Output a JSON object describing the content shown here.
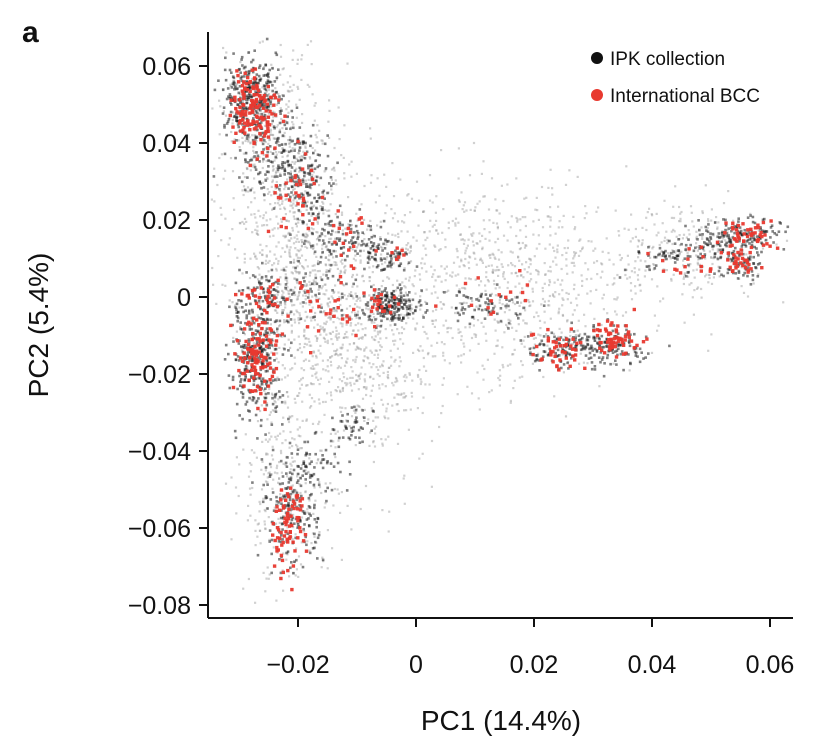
{
  "panel_label": "a",
  "chart_data": {
    "type": "scatter",
    "xlabel": "PC1 (14.4%)",
    "ylabel": "PC2 (5.4%)",
    "xlim": [
      -0.034,
      0.062
    ],
    "ylim": [
      -0.082,
      0.068
    ],
    "x_ticks": [
      {
        "value": -0.02,
        "label": "−0.02"
      },
      {
        "value": 0,
        "label": "0"
      },
      {
        "value": 0.02,
        "label": "0.02"
      },
      {
        "value": 0.04,
        "label": "0.04"
      },
      {
        "value": 0.06,
        "label": "0.06"
      }
    ],
    "y_ticks": [
      {
        "value": 0.06,
        "label": "0.06"
      },
      {
        "value": 0.04,
        "label": "0.04"
      },
      {
        "value": 0.02,
        "label": "0.02"
      },
      {
        "value": 0,
        "label": "0"
      },
      {
        "value": -0.02,
        "label": "−0.02"
      },
      {
        "value": -0.04,
        "label": "−0.04"
      },
      {
        "value": -0.06,
        "label": "−0.06"
      },
      {
        "value": -0.08,
        "label": "−0.08"
      }
    ],
    "grid": false,
    "legend_position": "top-right",
    "series": [
      {
        "name": "IPK collection",
        "color": "#1a1a1a",
        "clusters": [
          {
            "center": [
              -0.028,
              0.052
            ],
            "spread": [
              0.0022,
              0.005
            ],
            "weight": 300
          },
          {
            "center": [
              -0.024,
              0.036
            ],
            "spread": [
              0.0035,
              0.005
            ],
            "weight": 120
          },
          {
            "center": [
              -0.018,
              0.029
            ],
            "spread": [
              0.0025,
              0.006
            ],
            "weight": 140
          },
          {
            "center": [
              -0.012,
              0.016
            ],
            "spread": [
              0.003,
              0.003
            ],
            "weight": 80
          },
          {
            "center": [
              -0.007,
              0.011
            ],
            "spread": [
              0.002,
              0.002
            ],
            "weight": 40
          },
          {
            "center": [
              -0.003,
              0.01
            ],
            "spread": [
              0.0015,
              0.0015
            ],
            "weight": 30
          },
          {
            "center": [
              -0.004,
              -0.002
            ],
            "spread": [
              0.0022,
              0.0022
            ],
            "weight": 180
          },
          {
            "center": [
              -0.027,
              -0.015
            ],
            "spread": [
              0.0023,
              0.008
            ],
            "weight": 320
          },
          {
            "center": [
              -0.025,
              0.001
            ],
            "spread": [
              0.0025,
              0.003
            ],
            "weight": 70
          },
          {
            "center": [
              -0.016,
              0.0
            ],
            "spread": [
              0.0035,
              0.004
            ],
            "weight": 60
          },
          {
            "center": [
              -0.011,
              -0.033
            ],
            "spread": [
              0.0018,
              0.0025
            ],
            "weight": 40
          },
          {
            "center": [
              -0.021,
              -0.055
            ],
            "spread": [
              0.0025,
              0.007
            ],
            "weight": 170
          },
          {
            "center": [
              -0.017,
              -0.043
            ],
            "spread": [
              0.0025,
              0.004
            ],
            "weight": 60
          },
          {
            "center": [
              0.012,
              -0.003
            ],
            "spread": [
              0.004,
              0.0025
            ],
            "weight": 70
          },
          {
            "center": [
              0.024,
              -0.014
            ],
            "spread": [
              0.0025,
              0.0025
            ],
            "weight": 90
          },
          {
            "center": [
              0.033,
              -0.013
            ],
            "spread": [
              0.0035,
              0.0025
            ],
            "weight": 140
          },
          {
            "center": [
              0.045,
              0.011
            ],
            "spread": [
              0.004,
              0.0025
            ],
            "weight": 80
          },
          {
            "center": [
              0.055,
              0.016
            ],
            "spread": [
              0.0035,
              0.0022
            ],
            "weight": 150
          },
          {
            "center": [
              0.055,
              0.008
            ],
            "spread": [
              0.002,
              0.002
            ],
            "weight": 60
          }
        ]
      },
      {
        "name": "International BCC",
        "color": "#e8392f",
        "clusters": [
          {
            "center": [
              -0.0275,
              0.049
            ],
            "spread": [
              0.0018,
              0.005
            ],
            "weight": 140
          },
          {
            "center": [
              -0.02,
              0.028
            ],
            "spread": [
              0.0025,
              0.006
            ],
            "weight": 35
          },
          {
            "center": [
              -0.012,
              0.015
            ],
            "spread": [
              0.003,
              0.004
            ],
            "weight": 18
          },
          {
            "center": [
              -0.027,
              -0.016
            ],
            "spread": [
              0.0018,
              0.006
            ],
            "weight": 110
          },
          {
            "center": [
              -0.025,
              0.0
            ],
            "spread": [
              0.0022,
              0.003
            ],
            "weight": 30
          },
          {
            "center": [
              -0.006,
              -0.002
            ],
            "spread": [
              0.0015,
              0.002
            ],
            "weight": 20
          },
          {
            "center": [
              -0.015,
              -0.004
            ],
            "spread": [
              0.0035,
              0.004
            ],
            "weight": 25
          },
          {
            "center": [
              -0.022,
              -0.06
            ],
            "spread": [
              0.0015,
              0.006
            ],
            "weight": 75
          },
          {
            "center": [
              0.024,
              -0.014
            ],
            "spread": [
              0.0025,
              0.0025
            ],
            "weight": 45
          },
          {
            "center": [
              0.034,
              -0.011
            ],
            "spread": [
              0.002,
              0.0022
            ],
            "weight": 60
          },
          {
            "center": [
              0.056,
              0.016
            ],
            "spread": [
              0.0025,
              0.002
            ],
            "weight": 45
          },
          {
            "center": [
              0.055,
              0.009
            ],
            "spread": [
              0.0015,
              0.0018
            ],
            "weight": 30
          },
          {
            "center": [
              0.045,
              0.008
            ],
            "spread": [
              0.003,
              0.002
            ],
            "weight": 15
          },
          {
            "center": [
              0.014,
              0.0
            ],
            "spread": [
              0.004,
              0.003
            ],
            "weight": 15
          },
          {
            "center": [
              -0.003,
              0.011
            ],
            "spread": [
              0.001,
              0.001
            ],
            "weight": 6
          }
        ]
      }
    ],
    "background_cloud": {
      "color": "#9a9a9a",
      "clusters": [
        {
          "center": [
            -0.02,
            0.01
          ],
          "spread": [
            0.006,
            0.02
          ],
          "weight": 900
        },
        {
          "center": [
            -0.008,
            -0.015
          ],
          "spread": [
            0.006,
            0.015
          ],
          "weight": 500
        },
        {
          "center": [
            0.015,
            0.0
          ],
          "spread": [
            0.013,
            0.012
          ],
          "weight": 600
        },
        {
          "center": [
            0.045,
            0.012
          ],
          "spread": [
            0.008,
            0.006
          ],
          "weight": 250
        },
        {
          "center": [
            -0.022,
            -0.05
          ],
          "spread": [
            0.004,
            0.012
          ],
          "weight": 250
        },
        {
          "center": [
            -0.026,
            0.045
          ],
          "spread": [
            0.0035,
            0.01
          ],
          "weight": 250
        },
        {
          "center": [
            0.008,
            0.018
          ],
          "spread": [
            0.012,
            0.008
          ],
          "weight": 200
        }
      ]
    }
  }
}
